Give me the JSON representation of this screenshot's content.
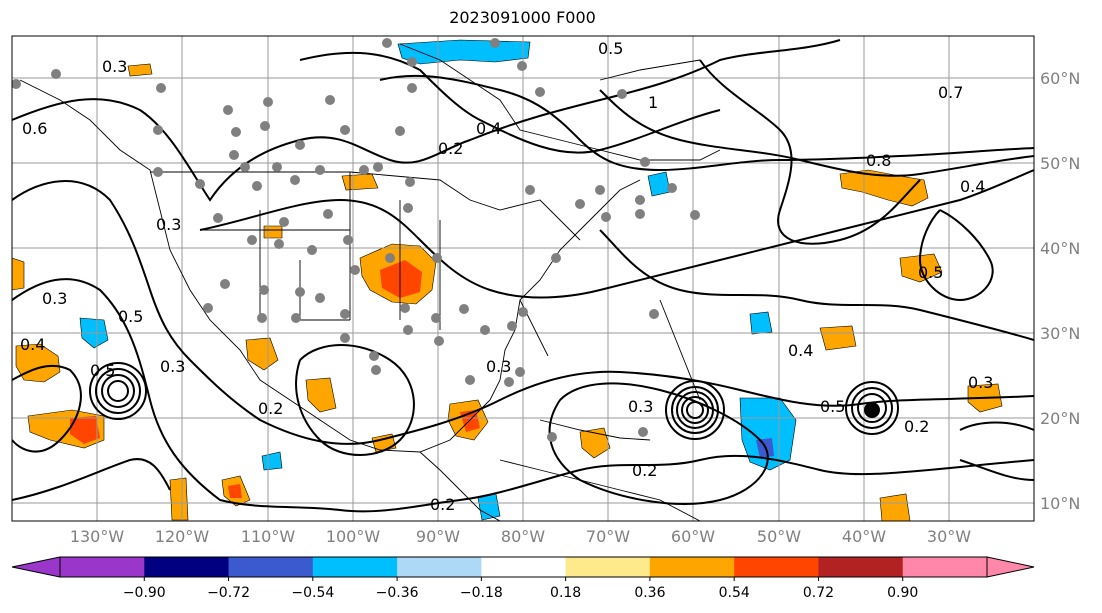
{
  "title": "2023091000 F000",
  "longitude_labels": [
    "130°W",
    "120°W",
    "110°W",
    "100°W",
    "90°W",
    "80°W",
    "70°W",
    "60°W",
    "50°W",
    "40°W",
    "30°W"
  ],
  "latitude_labels": [
    "60°N",
    "50°N",
    "40°N",
    "30°N",
    "20°N",
    "10°N"
  ],
  "contour_labels": [
    "0.3",
    "0.5",
    "0.6",
    "0.4",
    "0.2",
    "1",
    "0.7",
    "0.8",
    "0.5",
    "0.4",
    "0.5",
    "0.3",
    "0.5",
    "0.3",
    "0.4",
    "0.3",
    "0.2",
    "0.2",
    "0.2",
    "0.3",
    "0.3",
    "0.2",
    "0.4",
    "0.3",
    "0.5"
  ],
  "colorbar": {
    "ticks": [
      "−0.90",
      "−0.72",
      "−0.54",
      "−0.36",
      "−0.18",
      "0.18",
      "0.36",
      "0.54",
      "0.72",
      "0.90"
    ],
    "colors": [
      "#9a36c9",
      "#000080",
      "#3c5ad0",
      "#00bfff",
      "#add8f6",
      "#ffffff",
      "#fee98b",
      "#ffa500",
      "#ff4500",
      "#b22222",
      "#ff88aa"
    ],
    "under_color": "#9a36c9",
    "over_color": "#ff88aa"
  }
}
